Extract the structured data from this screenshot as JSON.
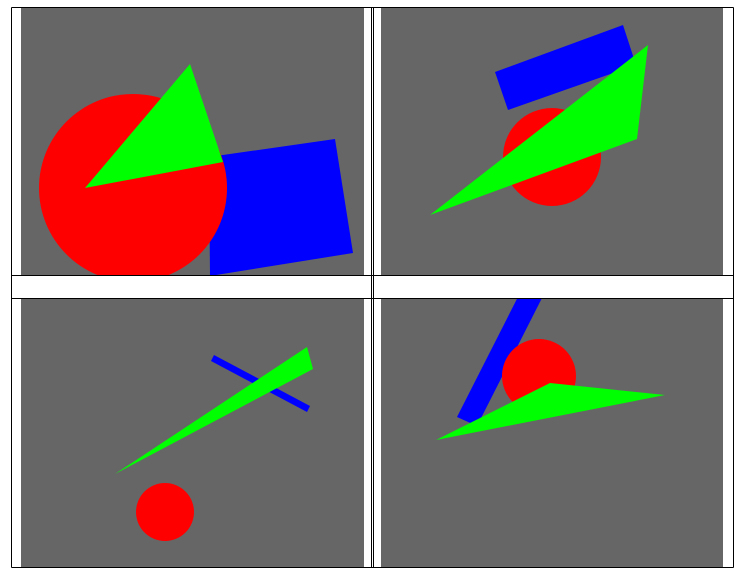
{
  "colors": {
    "background": "#ffffff",
    "panel": "#666666",
    "border": "#000000",
    "circle": "#ff0000",
    "rectangle": "#0000ff",
    "triangle": "#00ff00"
  },
  "layout": {
    "rows": 2,
    "columns": 2,
    "spacer_row": true
  },
  "panels": [
    {
      "position": "top-left",
      "shapes": [
        "circle",
        "triangle",
        "rectangle"
      ]
    },
    {
      "position": "top-right",
      "shapes": [
        "rectangle",
        "circle",
        "triangle"
      ]
    },
    {
      "position": "bottom-left",
      "shapes": [
        "rectangle-bar",
        "triangle",
        "circle"
      ]
    },
    {
      "position": "bottom-right",
      "shapes": [
        "rectangle-bar",
        "circle",
        "triangle"
      ]
    }
  ]
}
